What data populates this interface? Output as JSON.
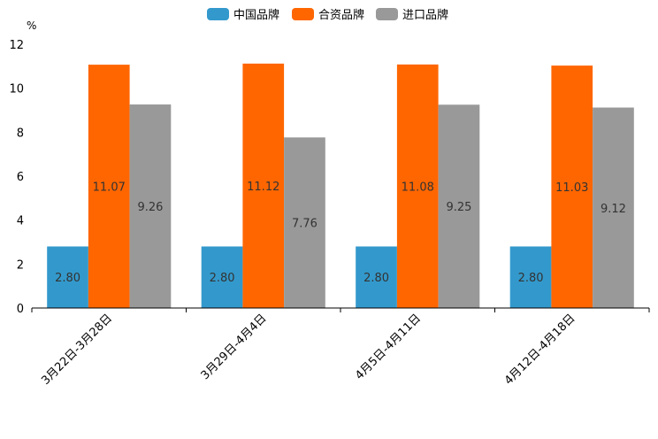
{
  "chart_data": {
    "type": "bar",
    "title": "",
    "ylabel": "%",
    "xlabel": "",
    "ylim": [
      0,
      12
    ],
    "yticks": [
      0,
      2,
      4,
      6,
      8,
      10,
      12
    ],
    "legend_position": "top-center",
    "grid": false,
    "categories": [
      "3月22日-3月28日",
      "3月29日-4月4日",
      "4月5日-4月11日",
      "4月12日-4月18日"
    ],
    "series": [
      {
        "name": "中国品牌",
        "color": "#3399cc",
        "values": [
          2.8,
          2.8,
          2.8,
          2.8
        ],
        "labels": [
          "2.80",
          "2.80",
          "2.80",
          "2.80"
        ]
      },
      {
        "name": "合资品牌",
        "color": "#ff6600",
        "values": [
          11.07,
          11.12,
          11.08,
          11.03
        ],
        "labels": [
          "11.07",
          "11.12",
          "11.08",
          "11.03"
        ]
      },
      {
        "name": "进口品牌",
        "color": "#999999",
        "values": [
          9.26,
          7.76,
          9.25,
          9.12
        ],
        "labels": [
          "9.26",
          "7.76",
          "9.25",
          "9.12"
        ]
      }
    ]
  }
}
